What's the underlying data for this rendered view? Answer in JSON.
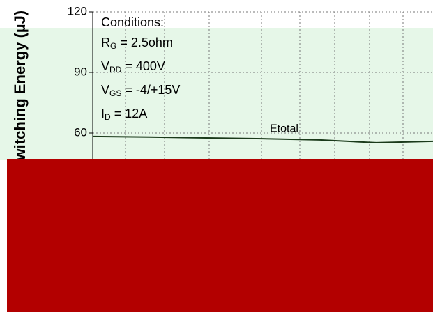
{
  "chart_data": {
    "type": "line",
    "ylabel": "Switching Energy (µJ)",
    "conditions_title": "Conditions:",
    "conditions": [
      {
        "symbol": "R",
        "sub": "G",
        "rest": " = 2.5ohm"
      },
      {
        "symbol": "V",
        "sub": "DD",
        "rest": " = 400V"
      },
      {
        "symbol": "V",
        "sub": "GS",
        "rest": " = -4/+15V"
      },
      {
        "symbol": "I",
        "sub": "D",
        "rest": " = 12A"
      }
    ],
    "x": [
      0,
      1,
      2,
      3,
      4,
      5,
      6
    ],
    "xlim": [
      0,
      6
    ],
    "series": [
      {
        "name": "Etotal",
        "color": "#1a3a1a",
        "values": [
          58.3,
          58.0,
          57.6,
          57.2,
          56.6,
          55.2,
          55.9
        ]
      }
    ],
    "ylim": [
      0,
      120
    ],
    "yticks": [
      60,
      90,
      120
    ],
    "grid": true
  }
}
